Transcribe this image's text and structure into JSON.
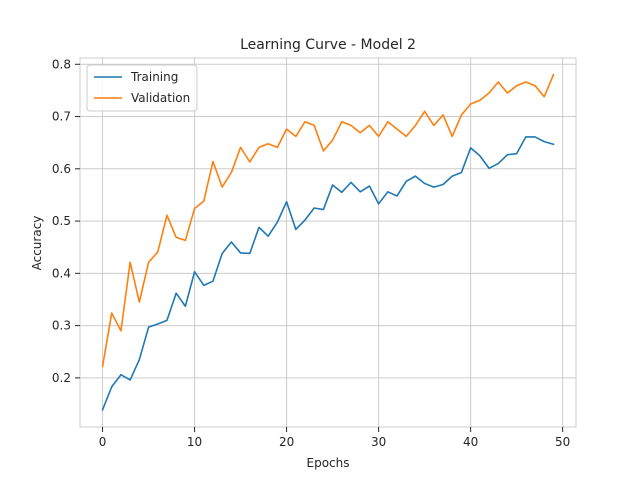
{
  "chart_data": {
    "type": "line",
    "title": "Learning Curve - Model 2",
    "xlabel": "Epochs",
    "ylabel": "Accuracy",
    "xlim": [
      -2.45,
      51.45
    ],
    "ylim": [
      0.106,
      0.812
    ],
    "xticks": [
      0,
      10,
      20,
      30,
      40,
      50
    ],
    "yticks": [
      0.2,
      0.3,
      0.4,
      0.5,
      0.6,
      0.7,
      0.8
    ],
    "grid": true,
    "legend_position": "top-left",
    "x": [
      0,
      1,
      2,
      3,
      4,
      5,
      6,
      7,
      8,
      9,
      10,
      11,
      12,
      13,
      14,
      15,
      16,
      17,
      18,
      19,
      20,
      21,
      22,
      23,
      24,
      25,
      26,
      27,
      28,
      29,
      30,
      31,
      32,
      33,
      34,
      35,
      36,
      37,
      38,
      39,
      40,
      41,
      42,
      43,
      44,
      45,
      46,
      47,
      48,
      49
    ],
    "series": [
      {
        "name": "Training",
        "color": "#1f77b4",
        "values": [
          0.139,
          0.183,
          0.206,
          0.196,
          0.235,
          0.297,
          0.303,
          0.31,
          0.362,
          0.337,
          0.403,
          0.377,
          0.385,
          0.438,
          0.46,
          0.439,
          0.438,
          0.488,
          0.471,
          0.498,
          0.537,
          0.484,
          0.502,
          0.525,
          0.522,
          0.569,
          0.555,
          0.574,
          0.556,
          0.567,
          0.533,
          0.556,
          0.548,
          0.576,
          0.586,
          0.572,
          0.565,
          0.57,
          0.586,
          0.593,
          0.64,
          0.625,
          0.601,
          0.61,
          0.627,
          0.629,
          0.661,
          0.661,
          0.652,
          0.647
        ]
      },
      {
        "name": "Validation",
        "color": "#ff7f0e",
        "values": [
          0.222,
          0.324,
          0.29,
          0.421,
          0.345,
          0.421,
          0.441,
          0.511,
          0.469,
          0.463,
          0.524,
          0.538,
          0.614,
          0.565,
          0.593,
          0.641,
          0.613,
          0.641,
          0.648,
          0.641,
          0.676,
          0.662,
          0.69,
          0.683,
          0.634,
          0.655,
          0.69,
          0.683,
          0.669,
          0.683,
          0.662,
          0.69,
          0.676,
          0.662,
          0.683,
          0.71,
          0.683,
          0.703,
          0.662,
          0.703,
          0.724,
          0.731,
          0.745,
          0.766,
          0.745,
          0.759,
          0.766,
          0.759,
          0.738,
          0.78
        ]
      }
    ]
  }
}
